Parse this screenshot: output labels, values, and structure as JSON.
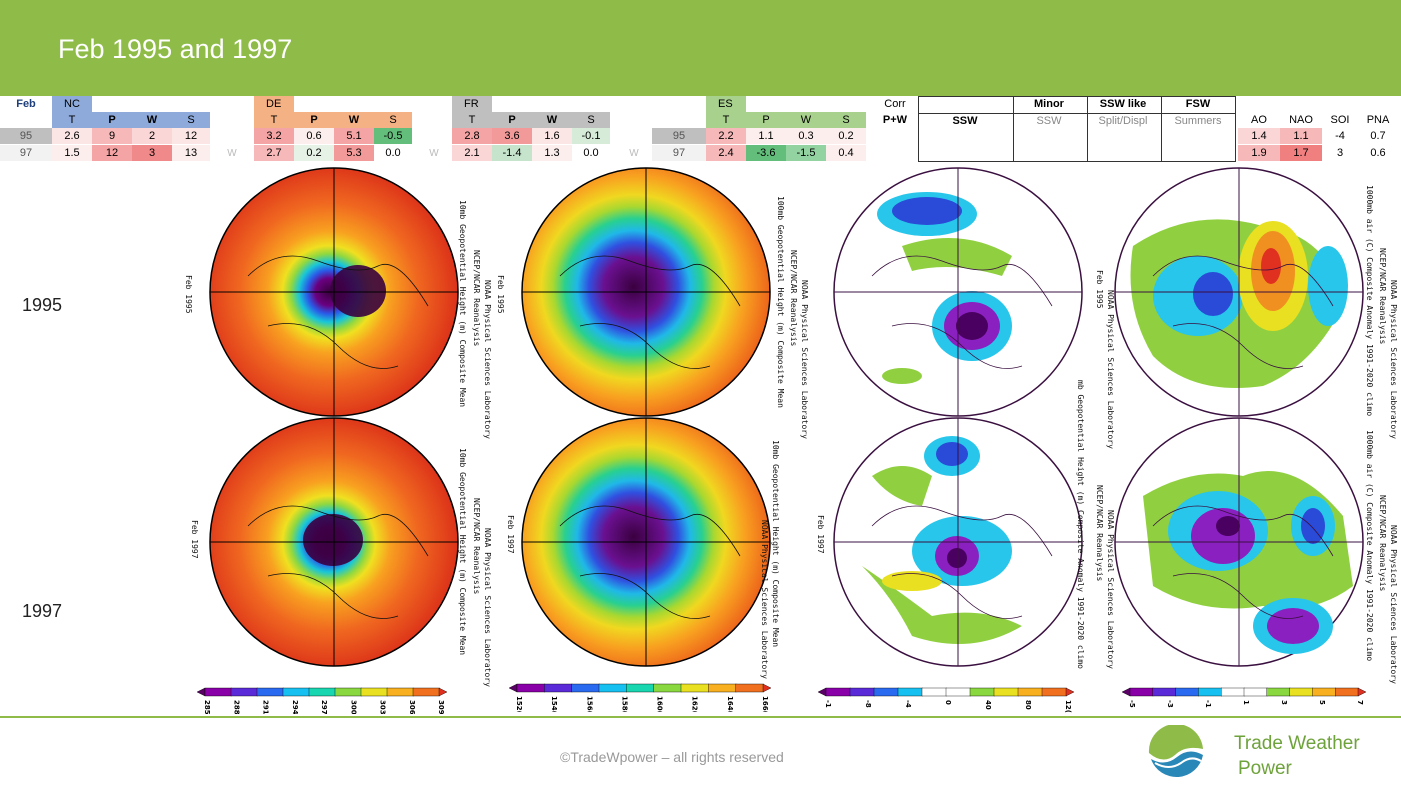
{
  "title": "Feb 1995 and 1997",
  "feb_label": "Feb",
  "regions": [
    {
      "name": "NC",
      "cols": [
        "T",
        "P",
        "W",
        "S"
      ],
      "rows": [
        [
          "2.6",
          "9",
          "2",
          "12"
        ],
        [
          "1.5",
          "12",
          "3",
          "13"
        ]
      ]
    },
    {
      "name": "DE",
      "cols": [
        "T",
        "P",
        "W",
        "S"
      ],
      "rows": [
        [
          "3.2",
          "0.6",
          "5.1",
          "-0.5"
        ],
        [
          "2.7",
          "0.2",
          "5.3",
          "0.0"
        ]
      ]
    },
    {
      "name": "FR",
      "cols": [
        "T",
        "P",
        "W",
        "S"
      ],
      "rows": [
        [
          "2.8",
          "3.6",
          "1.6",
          "-0.1"
        ],
        [
          "2.1",
          "-1.4",
          "1.3",
          "0.0"
        ]
      ]
    },
    {
      "name": "ES",
      "cols": [
        "T",
        "P",
        "W",
        "S"
      ],
      "rows": [
        [
          "2.2",
          "1.1",
          "0.3",
          "0.2"
        ],
        [
          "2.4",
          "-3.6",
          "-1.5",
          "0.4"
        ]
      ]
    }
  ],
  "row_years": [
    "95",
    "97"
  ],
  "w_marker": "W",
  "corr": {
    "line1": "Corr",
    "line2": "P+W"
  },
  "ssw": {
    "ssw": "SSW",
    "minor_top": "Minor",
    "minor_sub": "SSW",
    "like_top": "SSW like",
    "like_sub": "Split/Displ",
    "fsw_top": "FSW",
    "fsw_sub": "Summers"
  },
  "indices": {
    "cols": [
      "AO",
      "NAO",
      "SOI",
      "PNA"
    ],
    "rows": [
      [
        "1.4",
        "1.1",
        "-4",
        "0.7"
      ],
      [
        "1.9",
        "1.7",
        "3",
        "0.6"
      ]
    ]
  },
  "year_labels": [
    "1995",
    "1997"
  ],
  "map_texts": {
    "m1": "10mb Geopotential Height (m) Composite Mean",
    "m2": "100mb Geopotential Height (m) Composite Mean",
    "m3": "mb Geopotential Height (m) Composite Anomaly 1991-2020 climo",
    "m4": "1000mb air (C) Composite Anomaly 1991-2020 climo",
    "ncep": "NCEP/NCAR Reanalysis",
    "noaa": "NOAA Physical Sciences Laboratory",
    "feb95": "Feb 1995",
    "feb97": "Feb 1997"
  },
  "colorbars": [
    {
      "ticks": [
        "285(",
        "288(",
        "291(",
        "294(",
        "297(",
        "300(",
        "303(",
        "306(",
        "309("
      ],
      "colors": [
        "#5a0066",
        "#8a00a8",
        "#5a2ad8",
        "#2a6af0",
        "#16c0f0",
        "#18d6b0",
        "#8ad840",
        "#e8e020",
        "#f8b020",
        "#f07020",
        "#e03020"
      ]
    },
    {
      "ticks": [
        "152(",
        "154(",
        "156(",
        "158(",
        "160(",
        "162(",
        "164(",
        "166("
      ],
      "colors": [
        "#5a0066",
        "#8a00a8",
        "#5a2ad8",
        "#2a6af0",
        "#16c0f0",
        "#18d6b0",
        "#8ad840",
        "#e8e020",
        "#f8b020",
        "#f07020",
        "#e03020"
      ]
    },
    {
      "ticks": [
        "-1",
        "-8",
        "-4",
        "0",
        "40",
        "80",
        "12("
      ],
      "colors": [
        "#5a0066",
        "#8a00a8",
        "#5a2ad8",
        "#2a6af0",
        "#16c0f0",
        "#ffffff",
        "#ffffff",
        "#8ad840",
        "#e8e020",
        "#f8b020",
        "#f07020",
        "#e03020"
      ]
    },
    {
      "ticks": [
        "-5",
        "-3",
        "-1",
        "1",
        "3",
        "5",
        "7"
      ],
      "colors": [
        "#5a0066",
        "#8a00a8",
        "#5a2ad8",
        "#2a6af0",
        "#16c0f0",
        "#ffffff",
        "#ffffff",
        "#8ad840",
        "#e8e020",
        "#f8b020",
        "#f07020",
        "#e03020"
      ]
    }
  ],
  "footer": {
    "copyright": "©TradeWpower – all rights reserved",
    "brand1": "Trade Weather",
    "brand2": "Power"
  },
  "colors": {
    "header_green": "#8fbc48",
    "nc_blue": "#8eaadb",
    "de_orange": "#f4b183",
    "fr_gray": "#bfbfbf",
    "es_green": "#a9d18e"
  }
}
